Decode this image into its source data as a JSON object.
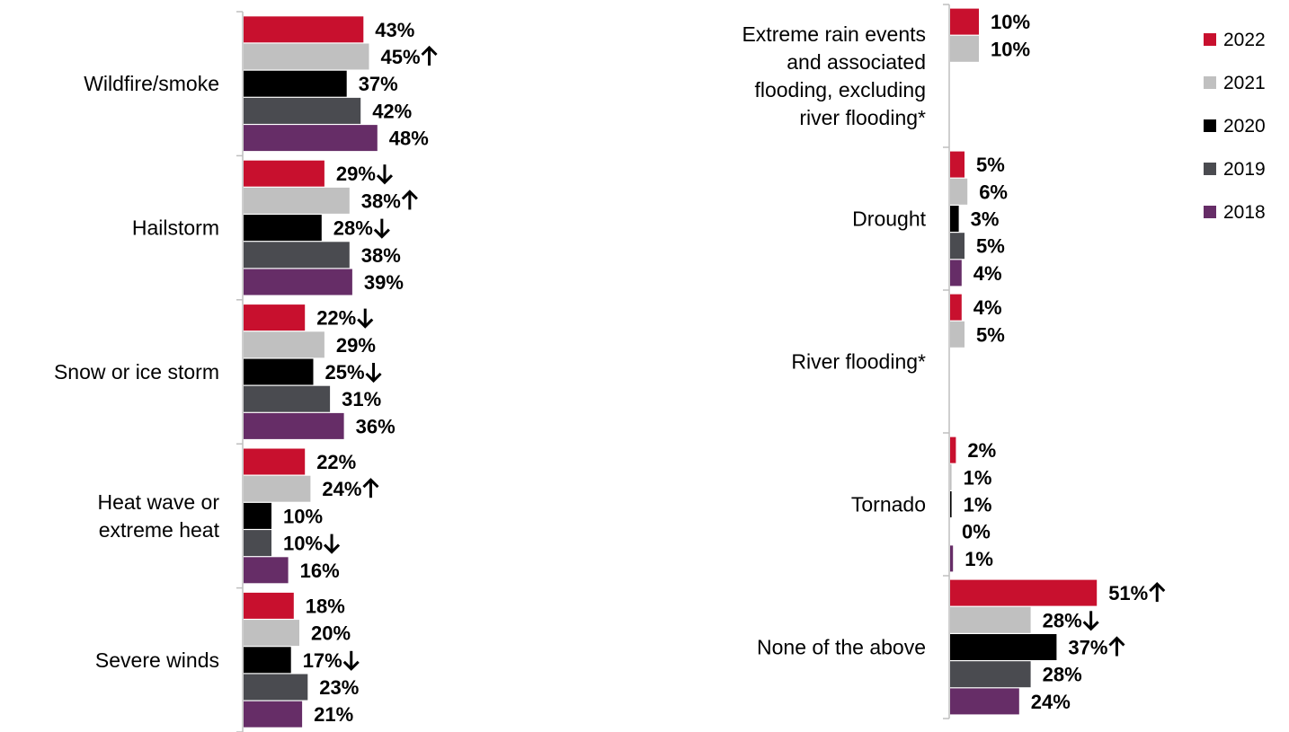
{
  "chart_data": {
    "type": "bar",
    "orientation": "horizontal",
    "grid": false,
    "legend_position": "right",
    "title": "",
    "xlabel": "",
    "ylabel": "",
    "value_format": "{v}%",
    "series": [
      {
        "name": "2022",
        "color": "#c8102e"
      },
      {
        "name": "2021",
        "color": "#c0c0c0"
      },
      {
        "name": "2020",
        "color": "#000000"
      },
      {
        "name": "2019",
        "color": "#4a4b50"
      },
      {
        "name": "2018",
        "color": "#662d67"
      }
    ],
    "panels": [
      {
        "categories": [
          {
            "name": "Wildfire/smoke",
            "label_lines": [
              "Wildfire/smoke"
            ],
            "values": [
              43,
              45,
              37,
              42,
              48
            ],
            "labels": [
              "43%",
              "45%",
              "37%",
              "42%",
              "48%"
            ],
            "trends": [
              "",
              "up",
              "",
              "",
              ""
            ]
          },
          {
            "name": "Hailstorm",
            "label_lines": [
              "Hailstorm"
            ],
            "values": [
              29,
              38,
              28,
              38,
              39
            ],
            "labels": [
              "29%",
              "38%",
              "28%",
              "38%",
              "39%"
            ],
            "trends": [
              "down",
              "up",
              "down",
              "",
              ""
            ]
          },
          {
            "name": "Snow or ice storm",
            "label_lines": [
              "Snow or ice storm"
            ],
            "values": [
              22,
              29,
              25,
              31,
              36
            ],
            "labels": [
              "22%",
              "29%",
              "25%",
              "31%",
              "36%"
            ],
            "trends": [
              "down",
              "",
              "down",
              "",
              ""
            ]
          },
          {
            "name": "Heat wave or extreme heat",
            "label_lines": [
              "Heat wave or",
              "extreme heat"
            ],
            "values": [
              22,
              24,
              10,
              10,
              16
            ],
            "labels": [
              "22%",
              "24%",
              "10%",
              "10%",
              "16%"
            ],
            "trends": [
              "",
              "up",
              "",
              "down",
              ""
            ]
          },
          {
            "name": "Severe winds",
            "label_lines": [
              "Severe winds"
            ],
            "values": [
              18,
              20,
              17,
              23,
              21
            ],
            "labels": [
              "18%",
              "20%",
              "17%",
              "23%",
              "21%"
            ],
            "trends": [
              "",
              "",
              "down",
              "",
              ""
            ]
          }
        ]
      },
      {
        "categories": [
          {
            "name": "Extreme rain events and associated flooding, excluding river flooding*",
            "label_lines": [
              "Extreme rain events",
              "and associated",
              "flooding, excluding",
              "river flooding*"
            ],
            "values": [
              10,
              10,
              null,
              null,
              null
            ],
            "labels": [
              "10%",
              "10%",
              null,
              null,
              null
            ],
            "trends": [
              "",
              "",
              "",
              "",
              ""
            ]
          },
          {
            "name": "Drought",
            "label_lines": [
              "Drought"
            ],
            "values": [
              5,
              6,
              3,
              5,
              4
            ],
            "labels": [
              "5%",
              "6%",
              "3%",
              "5%",
              "4%"
            ],
            "trends": [
              "",
              "",
              "",
              "",
              ""
            ]
          },
          {
            "name": "River flooding*",
            "label_lines": [
              "River flooding*"
            ],
            "values": [
              4,
              5,
              null,
              null,
              null
            ],
            "labels": [
              "4%",
              "5%",
              null,
              null,
              null
            ],
            "trends": [
              "",
              "",
              "",
              "",
              ""
            ]
          },
          {
            "name": "Tornado",
            "label_lines": [
              "Tornado"
            ],
            "values": [
              2,
              0.5,
              0.5,
              0,
              1
            ],
            "labels": [
              "2%",
              "1%",
              "1%",
              "0%",
              "1%"
            ],
            "trends": [
              "",
              "",
              "",
              "",
              ""
            ]
          },
          {
            "name": "None of the above",
            "label_lines": [
              "None of the above"
            ],
            "values": [
              51,
              28,
              37,
              28,
              24
            ],
            "labels": [
              "51%",
              "28%",
              "37%",
              "28%",
              "24%"
            ],
            "trends": [
              "up",
              "down",
              "up",
              "",
              ""
            ]
          }
        ]
      }
    ]
  }
}
